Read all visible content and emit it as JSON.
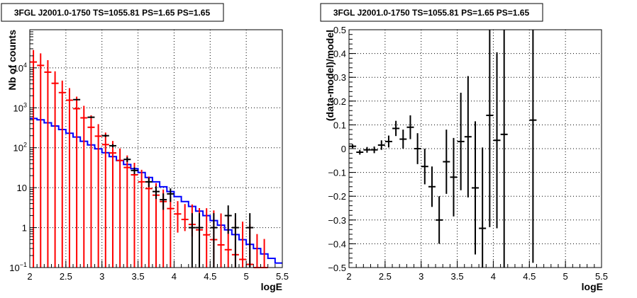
{
  "chart_data": [
    {
      "type": "step-histogram",
      "title": "3FGL J2001.0-1750 TS=1055.81 PS=1.65 PS=1.65",
      "xlabel": "logE",
      "ylabel": "Nb of counts",
      "xlim": [
        2,
        5.5
      ],
      "ylim": [
        0.1,
        90000
      ],
      "yscale": "log",
      "grid": true,
      "x_ticks": [
        "2",
        "2.5",
        "3",
        "3.5",
        "4",
        "4.5",
        "5",
        "5.5"
      ],
      "y_ticks": [
        "10⁻¹",
        "1",
        "10",
        "10²",
        "10³",
        "10⁴"
      ],
      "bin_edges": [
        2.0,
        2.1,
        2.2,
        2.3,
        2.4,
        2.5,
        2.6,
        2.7,
        2.8,
        2.9,
        3.0,
        3.1,
        3.2,
        3.3,
        3.4,
        3.5,
        3.6,
        3.7,
        3.8,
        3.9,
        4.0,
        4.1,
        4.2,
        4.3,
        4.4,
        4.5,
        4.6,
        4.7,
        4.8,
        4.9,
        5.0,
        5.1,
        5.2,
        5.3,
        5.4,
        5.5
      ],
      "series": [
        {
          "style": "step",
          "color": "#0000ff",
          "values": [
            540,
            500,
            420,
            350,
            285,
            230,
            185,
            145,
            118,
            94,
            75,
            60,
            48,
            38,
            30,
            24,
            18,
            14,
            10.5,
            8,
            6,
            4.5,
            3.4,
            2.6,
            2,
            1.5,
            1.15,
            0.88,
            0.67,
            0.5,
            0.38,
            0.3,
            0.22,
            0.17,
            0.13
          ]
        },
        {
          "style": "errorbars",
          "color": "#ff0000",
          "x": [
            2.05,
            2.15,
            2.25,
            2.35,
            2.45,
            2.55,
            2.65,
            2.75,
            2.85,
            2.95,
            3.05,
            3.15,
            3.25,
            3.35,
            3.45,
            3.55,
            3.65,
            3.75,
            3.85,
            3.95,
            4.05,
            4.15,
            4.25,
            4.35,
            4.45,
            4.55,
            4.65,
            4.75,
            4.85,
            4.95,
            5.05,
            5.15,
            5.25
          ],
          "y": [
            14000,
            11500,
            7800,
            4100,
            2400,
            1550,
            950,
            560,
            325,
            195,
            120,
            74,
            48,
            32,
            21,
            14,
            9.5,
            6.5,
            4.5,
            3,
            2.2,
            1.6,
            1.2,
            0.88,
            0.66,
            0.5,
            0.37,
            0.28,
            0.21,
            0.16,
            0.12,
            0.09,
            0.07
          ],
          "err_lo": [
            14000,
            11500,
            7800,
            4100,
            2400,
            1550,
            950,
            560,
            325,
            195,
            120,
            74,
            48,
            32,
            21,
            14,
            9.5,
            6.5,
            4.5,
            3,
            1.45,
            0.78,
            0.6,
            0.75,
            0.56,
            0.43,
            0.32,
            0.24,
            0.18,
            0.14,
            0.1,
            0.08,
            0.06
          ],
          "err_hi": [
            14000,
            11500,
            7800,
            4100,
            2400,
            1550,
            950,
            560,
            325,
            195,
            120,
            74,
            48,
            32,
            21,
            14,
            9.5,
            6.5,
            4.5,
            3,
            2.4,
            2.3,
            2.6,
            2.2,
            2.4,
            2.2,
            1.9,
            1.7,
            1.45,
            1.25,
            1.1,
            0.6,
            0.45
          ]
        },
        {
          "style": "errorbars",
          "color": "#000000",
          "x": [
            2.65,
            2.85,
            3.05,
            3.15,
            3.35,
            3.45,
            3.65,
            3.75,
            3.85,
            3.95,
            4.25,
            4.35,
            4.55,
            4.75,
            4.85,
            5.05
          ],
          "y": [
            1600,
            580,
            200,
            112,
            51,
            27,
            14,
            8,
            5,
            7,
            1,
            1,
            1,
            2,
            1,
            1
          ],
          "err_lo": [
            40,
            24,
            14,
            10.5,
            7.1,
            5.2,
            3.7,
            2.8,
            2.2,
            2.6,
            1,
            1,
            1,
            1.3,
            1,
            1
          ],
          "err_hi": [
            40,
            24,
            14,
            10.5,
            7.1,
            5.2,
            3.7,
            2.8,
            2.2,
            2.6,
            1.3,
            1.3,
            1.3,
            1.6,
            1.3,
            1.3
          ]
        }
      ]
    },
    {
      "type": "errorbar",
      "title": "3FGL J2001.0-1750 TS=1055.81 PS=1.65 PS=1.65",
      "xlabel": "logE",
      "ylabel": "(data-model)/model",
      "xlim": [
        2,
        5.5
      ],
      "ylim": [
        -0.5,
        0.5
      ],
      "grid": true,
      "x_ticks": [
        "2",
        "2.5",
        "3",
        "3.5",
        "4",
        "4.5",
        "5",
        "5.5"
      ],
      "y_ticks": [
        "−0.5",
        "−0.4",
        "−0.3",
        "−0.2",
        "−0.1",
        "0",
        "0.1",
        "0.2",
        "0.3",
        "0.4",
        "0.5"
      ],
      "series": [
        {
          "color": "#000000",
          "x": [
            2.05,
            2.15,
            2.25,
            2.35,
            2.45,
            2.55,
            2.65,
            2.75,
            2.85,
            2.95,
            3.05,
            3.15,
            3.25,
            3.35,
            3.45,
            3.55,
            3.65,
            3.75,
            3.85,
            3.95,
            4.05,
            4.15,
            4.55
          ],
          "y": [
            0.01,
            -0.015,
            -0.005,
            -0.005,
            0.015,
            0.03,
            0.085,
            0.04,
            0.09,
            0.0,
            -0.075,
            -0.16,
            -0.3,
            -0.055,
            -0.12,
            0.03,
            0.05,
            -0.165,
            -0.335,
            0.14,
            0.035,
            0.06,
            0.12
          ],
          "err": [
            0.008,
            0.01,
            0.012,
            0.014,
            0.02,
            0.025,
            0.032,
            0.04,
            0.05,
            0.065,
            0.075,
            0.085,
            0.1,
            0.135,
            0.165,
            0.205,
            0.255,
            0.28,
            0.34,
            0.47,
            0.37,
            0.6,
            0.6
          ]
        }
      ]
    }
  ]
}
